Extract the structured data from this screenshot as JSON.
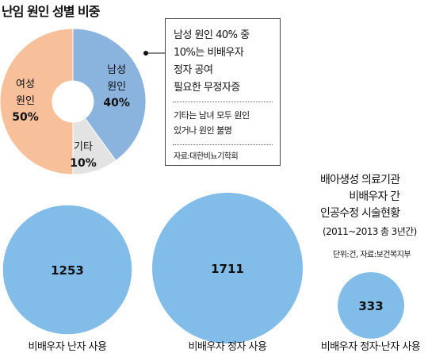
{
  "title": "난임 원인 성별 비중",
  "callout": {
    "main": [
      "남성 원인 40% 중",
      "10%는 비배우자",
      "정자 공여",
      "필요한 무정자증"
    ],
    "note": [
      "기타는 남녀 모두 원인",
      "있거나 원인 불명"
    ],
    "source": "자료:대한비뇨기학회"
  },
  "side_heading": {
    "title": [
      "배아생성 의료기관",
      "비배우자 간",
      "인공수정 시술현황"
    ],
    "period": "(2011~2013 총 3년간)",
    "unit": "단위:건, 자료:보건복지부"
  },
  "colors": {
    "male": "#8AB3DD",
    "female": "#F7C09B",
    "other": "#E3E3E3",
    "bubble": "#82BCE8"
  },
  "chart_data": [
    {
      "type": "pie",
      "title": "난임 원인 성별 비중",
      "slices": [
        {
          "label": [
            "남성",
            "원인"
          ],
          "value": 40,
          "value_label": "40%",
          "color": "#8AB3DD"
        },
        {
          "label": [
            "기타"
          ],
          "value": 10,
          "value_label": "10%",
          "color": "#E3E3E3"
        },
        {
          "label": [
            "여성",
            "원인"
          ],
          "value": 50,
          "value_label": "50%",
          "color": "#F7C09B"
        }
      ]
    },
    {
      "type": "bubble",
      "title": "배아생성 의료기관 비배우자 간 인공수정 시술현황",
      "categories": [
        "비배우자 난자 사용",
        "비배우자 정자 사용",
        "비배우자 정자·난자 사용"
      ],
      "values": [
        1253,
        1711,
        333
      ],
      "unit": "건"
    }
  ]
}
